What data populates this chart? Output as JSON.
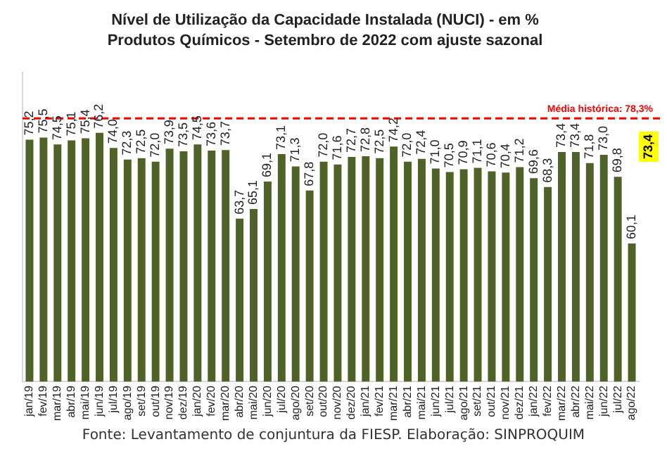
{
  "chart_data": {
    "type": "bar",
    "title": "Nível de Utilização da Capacidade Instalada (NUCI) - em %",
    "subtitle": "Produtos Químicos - Setembro de 2022 com ajuste sazonal",
    "categories": [
      "jan/19",
      "fev/19",
      "mar/19",
      "abr/19",
      "mai/19",
      "jun/19",
      "jul/19",
      "ago/19",
      "set/19",
      "out/19",
      "nov/19",
      "dez/19",
      "jan/20",
      "fev/20",
      "mar/20",
      "abr/20",
      "mai/20",
      "jun/20",
      "jul/20",
      "ago/20",
      "set/20",
      "out/20",
      "nov/20",
      "dez/20",
      "jan/21",
      "fev/21",
      "mar/21",
      "abr/21",
      "mai/21",
      "jun/21",
      "jul/21",
      "ago/21",
      "set/21",
      "out/21",
      "nov/21",
      "dez/21",
      "jan/22",
      "fev/22",
      "mar/22",
      "abr/22",
      "mai/22",
      "jun/22",
      "jul/22",
      "ago/22"
    ],
    "values": [
      75.2,
      75.5,
      74.5,
      75.1,
      75.4,
      76.2,
      74.0,
      72.3,
      72.5,
      72.0,
      73.9,
      73.5,
      74.5,
      73.6,
      73.7,
      63.7,
      65.1,
      69.1,
      73.1,
      71.3,
      67.8,
      72.0,
      71.6,
      72.7,
      72.8,
      72.5,
      74.2,
      72.0,
      72.4,
      71.0,
      70.5,
      70.9,
      71.1,
      70.6,
      70.4,
      71.2,
      69.6,
      68.3,
      73.4,
      73.4,
      71.8,
      73.0,
      69.8,
      60.1
    ],
    "value_labels": [
      "75,2",
      "75,5",
      "74,5",
      "75,1",
      "75,4",
      "76,2",
      "74,0",
      "72,3",
      "72,5",
      "72,0",
      "73,9",
      "73,5",
      "74,5",
      "73,6",
      "73,7",
      "63,7",
      "65,1",
      "69,1",
      "73,1",
      "71,3",
      "67,8",
      "72,0",
      "71,6",
      "72,7",
      "72,8",
      "72,5",
      "74,2",
      "72,0",
      "72,4",
      "71,0",
      "70,5",
      "70,9",
      "71,1",
      "70,6",
      "70,4",
      "71,2",
      "69,6",
      "68,3",
      "73,4",
      "73,4",
      "71,8",
      "73,0",
      "69,8",
      "60,1"
    ],
    "color": "#4f6228",
    "ylim": [
      40,
      85
    ],
    "tick_labels": "x",
    "grid": false,
    "legend": false,
    "ref_lines": [
      {
        "axis": "y",
        "value": 78.3,
        "label": "Média histórica: 78,3%",
        "color": "#ff0000",
        "line_style": "dashed"
      }
    ],
    "annotations": [
      "73,4",
      "Fonte: Levantamento de conjuntura da FIESP. Elaboração: SINPROQUIM"
    ]
  }
}
